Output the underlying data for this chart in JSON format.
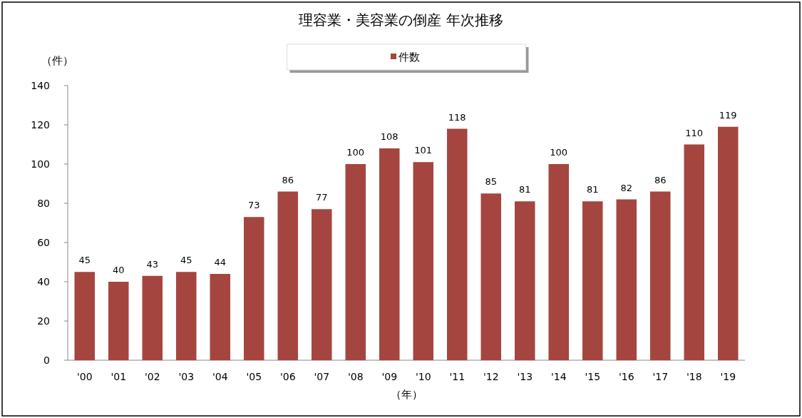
{
  "chart_data": {
    "type": "bar",
    "title": "理容業・美容業の倒産 年次推移",
    "ylabel": "（件）",
    "xlabel": "（年）",
    "categories": [
      "'00",
      "'01",
      "'02",
      "'03",
      "'04",
      "'05",
      "'06",
      "'07",
      "'08",
      "'09",
      "'10",
      "'11",
      "'12",
      "'13",
      "'14",
      "'15",
      "'16",
      "'17",
      "'18",
      "'19"
    ],
    "series": [
      {
        "name": "件数",
        "color": "#a5453f",
        "values": [
          45,
          40,
          43,
          45,
          44,
          73,
          86,
          77,
          100,
          108,
          101,
          118,
          85,
          81,
          100,
          81,
          82,
          86,
          110,
          119
        ]
      }
    ],
    "ylim": [
      0,
      140
    ],
    "yticks": [
      0,
      20,
      40,
      60,
      80,
      100,
      120,
      140
    ],
    "data_labels": true,
    "legend": "top",
    "grid": false
  }
}
